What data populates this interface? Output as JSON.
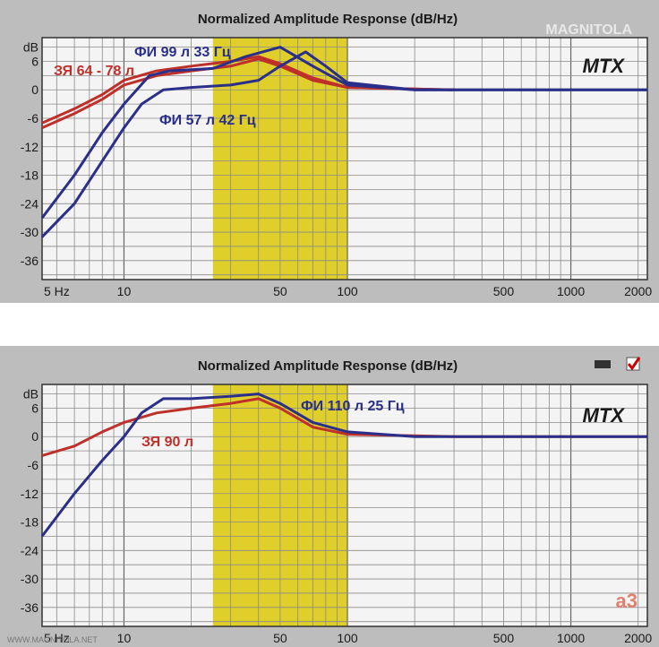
{
  "chart_data": [
    {
      "type": "line",
      "title": "Normalized Amplitude Response (dB/Hz)",
      "brand": "MTX",
      "logo": "MAGNITOLA",
      "x_scale": "log",
      "xlim": [
        4.3,
        2200
      ],
      "ylim": [
        -40,
        11
      ],
      "x_ticks": [
        {
          "v": 5,
          "label": "5 Hz"
        },
        {
          "v": 10,
          "label": "10"
        },
        {
          "v": 50,
          "label": "50"
        },
        {
          "v": 100,
          "label": "100"
        },
        {
          "v": 500,
          "label": "500"
        },
        {
          "v": 1000,
          "label": "1000"
        },
        {
          "v": 2000,
          "label": "2000"
        }
      ],
      "y_ticks": [
        {
          "v": 9,
          "label": "dB"
        },
        {
          "v": 6,
          "label": "6"
        },
        {
          "v": 0,
          "label": "0"
        },
        {
          "v": -6,
          "label": "-6"
        },
        {
          "v": -12,
          "label": "-12"
        },
        {
          "v": -18,
          "label": "-18"
        },
        {
          "v": -24,
          "label": "-24"
        },
        {
          "v": -30,
          "label": "-30"
        },
        {
          "v": -36,
          "label": "-36"
        }
      ],
      "highlight_band": [
        25,
        100
      ],
      "grid": true,
      "series": [
        {
          "name": "ЗЯ 64 - 78 л",
          "color": "#c0302a",
          "x": [
            4.3,
            6,
            8,
            10,
            14,
            20,
            30,
            40,
            50,
            70,
            100,
            300
          ],
          "y": [
            -8,
            -5,
            -2,
            1,
            3,
            4,
            5,
            6.5,
            5,
            2,
            0.5,
            0
          ]
        },
        {
          "name": "",
          "color": "#c0302a",
          "x": [
            4.3,
            6,
            8,
            10,
            14,
            20,
            30,
            40,
            50,
            70,
            100,
            300
          ],
          "y": [
            -7,
            -4,
            -1,
            2,
            4,
            5,
            6,
            7,
            5.5,
            2.5,
            0.5,
            0
          ]
        },
        {
          "name": "ФИ 99 л 33 Гц",
          "color": "#2a2f8a",
          "x": [
            4.3,
            6,
            8,
            10,
            13,
            16,
            25,
            35,
            50,
            70,
            100,
            200,
            2200
          ],
          "y": [
            -27,
            -18,
            -9,
            -3,
            3,
            4,
            4.5,
            7,
            9,
            5,
            1,
            0,
            0
          ]
        },
        {
          "name": "ФИ 57 л 42 Гц",
          "color": "#2a2f8a",
          "x": [
            4.3,
            6,
            8,
            10,
            12,
            15,
            20,
            30,
            40,
            50,
            65,
            80,
            100,
            200,
            2200
          ],
          "y": [
            -31,
            -24,
            -15,
            -8,
            -3,
            0,
            0.5,
            1,
            2,
            5,
            8,
            5,
            1.5,
            0,
            0
          ]
        }
      ],
      "series_labels": [
        {
          "text": "ФИ 99 л 33 Гц",
          "color": "#2a2f8a"
        },
        {
          "text": "ЗЯ 64 - 78 л",
          "color": "#c0302a"
        },
        {
          "text": "ФИ 57 л 42 Гц",
          "color": "#2a2f8a"
        }
      ]
    },
    {
      "type": "line",
      "title": "Normalized Amplitude Response (dB/Hz)",
      "brand": "MTX",
      "logo": "a3",
      "footer": "WWW.MAGNITOLA.NET",
      "x_scale": "log",
      "xlim": [
        4.3,
        2200
      ],
      "ylim": [
        -40,
        11
      ],
      "x_ticks": [
        {
          "v": 5,
          "label": "5 Hz"
        },
        {
          "v": 10,
          "label": "10"
        },
        {
          "v": 50,
          "label": "50"
        },
        {
          "v": 100,
          "label": "100"
        },
        {
          "v": 500,
          "label": "500"
        },
        {
          "v": 1000,
          "label": "1000"
        },
        {
          "v": 2000,
          "label": "2000"
        }
      ],
      "y_ticks": [
        {
          "v": 9,
          "label": "dB"
        },
        {
          "v": 6,
          "label": "6"
        },
        {
          "v": 0,
          "label": "0"
        },
        {
          "v": -6,
          "label": "-6"
        },
        {
          "v": -12,
          "label": "-12"
        },
        {
          "v": -18,
          "label": "-18"
        },
        {
          "v": -24,
          "label": "-24"
        },
        {
          "v": -30,
          "label": "-30"
        },
        {
          "v": -36,
          "label": "-36"
        }
      ],
      "highlight_band": [
        25,
        100
      ],
      "grid": true,
      "series": [
        {
          "name": "ЗЯ 90 л",
          "color": "#c0302a",
          "x": [
            4.3,
            6,
            8,
            10,
            14,
            20,
            30,
            40,
            50,
            70,
            100,
            300,
            2200
          ],
          "y": [
            -4,
            -2,
            1,
            3,
            5,
            6,
            7,
            8,
            6,
            2,
            0.5,
            0,
            0
          ]
        },
        {
          "name": "ФИ 110 л 25 Гц",
          "color": "#2a2f8a",
          "x": [
            4.3,
            6,
            8,
            10,
            12,
            15,
            20,
            30,
            40,
            50,
            70,
            100,
            200,
            2200
          ],
          "y": [
            -21,
            -12,
            -5,
            0,
            5,
            8,
            8,
            8.5,
            9,
            7,
            3,
            1,
            0,
            0
          ]
        }
      ],
      "series_labels": [
        {
          "text": "ФИ 110 л 25 Гц",
          "color": "#2a2f8a"
        },
        {
          "text": "ЗЯ 90 л",
          "color": "#c0302a"
        }
      ]
    }
  ]
}
